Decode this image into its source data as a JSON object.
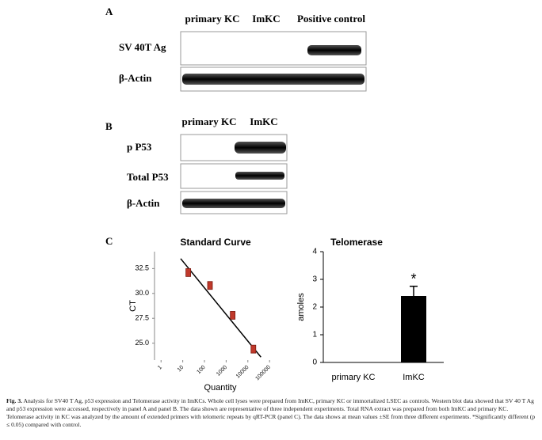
{
  "panels": {
    "A": {
      "label": "A",
      "columns": [
        "primary KC",
        "ImKC",
        "Positive control"
      ],
      "rows": [
        "SV 40T Ag",
        "β-Actin"
      ]
    },
    "B": {
      "label": "B",
      "columns": [
        "primary KC",
        "ImKC"
      ],
      "rows": [
        "p P53",
        "Total P53",
        "β-Actin"
      ]
    },
    "C": {
      "label": "C"
    }
  },
  "chart_data": [
    {
      "type": "scatter",
      "title": "Standard Curve",
      "x_label": "Quantity",
      "y_label": "CT",
      "log_x": true,
      "xlim": [
        0.5,
        150000
      ],
      "xticks": [
        1,
        10,
        100,
        1000,
        10000,
        100000
      ],
      "ylim": [
        23.3,
        34.2
      ],
      "yticks": [
        {
          "value": 25,
          "label": "25.0"
        },
        {
          "value": 27.5,
          "label": "27.5"
        },
        {
          "value": 30,
          "label": "30.0"
        },
        {
          "value": 32.5,
          "label": "32.5"
        }
      ],
      "x": [
        18,
        180,
        2000,
        18000
      ],
      "values": [
        32.1,
        30.8,
        27.8,
        24.4
      ],
      "color": "#c0392b",
      "fit_line": {
        "x": [
          8,
          40000
        ],
        "values": [
          33.5,
          23.6
        ],
        "color": "#000000"
      }
    },
    {
      "type": "bar",
      "title": "Telomerase",
      "y_label": "amoles",
      "categories": [
        "primary KC",
        "ImKC"
      ],
      "values": [
        0,
        2.4
      ],
      "errors": [
        0,
        0.35
      ],
      "color": "#000000",
      "ylim": [
        0,
        4
      ],
      "yticks": [
        0,
        1,
        2,
        3,
        4
      ],
      "annotation": "*"
    }
  ],
  "caption": {
    "label": "Fig. 3.",
    "text": "Analysis for SV40 T Ag, p53 expression and Telomerase activity in ImKCs. Whole cell lyses were prepared from ImKC, primary KC or immortalized LSEC as controls. Western blot data showed that SV 40 T Ag and p53 expression were accessed, respectively in panel A and panel B. The data shown are representative of three independent experiments. Total RNA extract was prepared from both ImKC and primary KC. Telomerase activity in KC was analyzed by the amount of extended primers with telomeric repeats by qRT-PCR (panel C). The data shows at mean values ±SE from three different experiments. *Significantly different (p ≤ 0.05) compared with control."
  }
}
